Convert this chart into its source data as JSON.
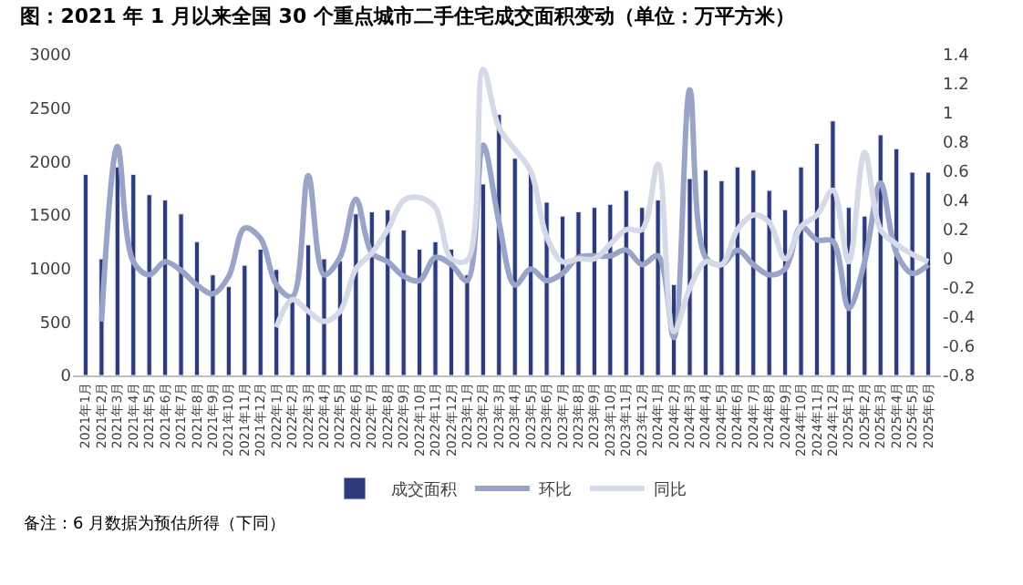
{
  "chart_data": {
    "type": "bar",
    "title": "图：2021 年 1 月以来全国 30 个重点城市二手住宅成交面积变动（单位：万平方米）",
    "categories": [
      "2021年1月",
      "2021年2月",
      "2021年3月",
      "2021年4月",
      "2021年5月",
      "2021年6月",
      "2021年7月",
      "2021年8月",
      "2021年9月",
      "2021年10月",
      "2021年11月",
      "2021年12月",
      "2022年1月",
      "2022年2月",
      "2022年3月",
      "2022年4月",
      "2022年5月",
      "2022年6月",
      "2022年7月",
      "2022年8月",
      "2022年9月",
      "2022年10月",
      "2022年11月",
      "2022年12月",
      "2023年1月",
      "2023年2月",
      "2023年3月",
      "2023年4月",
      "2023年5月",
      "2023年6月",
      "2023年7月",
      "2023年8月",
      "2023年9月",
      "2023年10月",
      "2023年11月",
      "2023年12月",
      "2024年1月",
      "2024年2月",
      "2024年3月",
      "2024年4月",
      "2024年5月",
      "2024年6月",
      "2024年7月",
      "2024年8月",
      "2024年9月",
      "2024年10月",
      "2024年11月",
      "2024年12月",
      "2025年1月",
      "2025年2月",
      "2025年3月",
      "2025年4月",
      "2025年5月",
      "2025年6月"
    ],
    "series": [
      {
        "name": "成交面积",
        "color": "#2e3a7a",
        "values": [
          1880,
          1090,
          1950,
          1880,
          1690,
          1640,
          1510,
          1250,
          940,
          830,
          1030,
          1180,
          990,
          760,
          1220,
          1090,
          1070,
          1510,
          1530,
          1550,
          1360,
          1180,
          1250,
          1180,
          940,
          1790,
          2440,
          2030,
          1890,
          1620,
          1490,
          1530,
          1570,
          1600,
          1730,
          1570,
          1640,
          850,
          1840,
          1920,
          1820,
          1950,
          1920,
          1730,
          1550,
          1950,
          2170,
          2380,
          1570,
          1490,
          2250,
          2120,
          1900,
          1900
        ]
      },
      {
        "name": "环比",
        "type": "line",
        "axis": "y2",
        "color": "#9aa3c8",
        "values": [
          null,
          -0.43,
          0.77,
          -0.02,
          -0.11,
          -0.02,
          -0.08,
          -0.18,
          -0.24,
          -0.12,
          0.21,
          0.14,
          -0.18,
          -0.26,
          0.57,
          -0.11,
          0.01,
          0.41,
          0.04,
          -0.02,
          -0.12,
          -0.15,
          0.01,
          -0.04,
          -0.15,
          0.78,
          0.25,
          -0.18,
          -0.07,
          -0.15,
          -0.1,
          0.01,
          0.02,
          0.02,
          0.06,
          -0.04,
          0.02,
          -0.54,
          1.16,
          0.01,
          -0.04,
          0.06,
          -0.04,
          -0.11,
          -0.07,
          0.22,
          0.13,
          0.12,
          -0.34,
          -0.02,
          0.52,
          0.04,
          -0.1,
          -0.04
        ]
      },
      {
        "name": "同比",
        "type": "line",
        "axis": "y2",
        "color": "#d5d9e8",
        "values": [
          null,
          null,
          null,
          null,
          null,
          null,
          null,
          null,
          null,
          null,
          null,
          null,
          -0.47,
          -0.28,
          -0.36,
          -0.43,
          -0.36,
          -0.07,
          0.04,
          0.2,
          0.4,
          0.42,
          0.35,
          0.0,
          -0.01,
          1.3,
          0.9,
          0.75,
          0.6,
          0.15,
          -0.02,
          0.0,
          0.0,
          0.1,
          0.2,
          0.2,
          0.65,
          -0.5,
          -0.2,
          -0.02,
          -0.04,
          0.2,
          0.3,
          0.25,
          0.0,
          0.22,
          0.3,
          0.47,
          -0.02,
          0.73,
          0.2,
          0.1,
          0.03,
          -0.02
        ]
      }
    ],
    "ylim": [
      0,
      3000
    ],
    "yticks": [
      0,
      500,
      1000,
      1500,
      2000,
      2500,
      3000
    ],
    "y2lim": [
      -0.8,
      1.4
    ],
    "y2ticks": [
      -0.8,
      -0.6,
      -0.4,
      -0.2,
      0,
      0.2,
      0.4,
      0.6,
      0.8,
      1,
      1.2,
      1.4
    ],
    "legend": "bottom",
    "annotations": [
      "备注：6 月数据为预估所得（下同）"
    ]
  }
}
